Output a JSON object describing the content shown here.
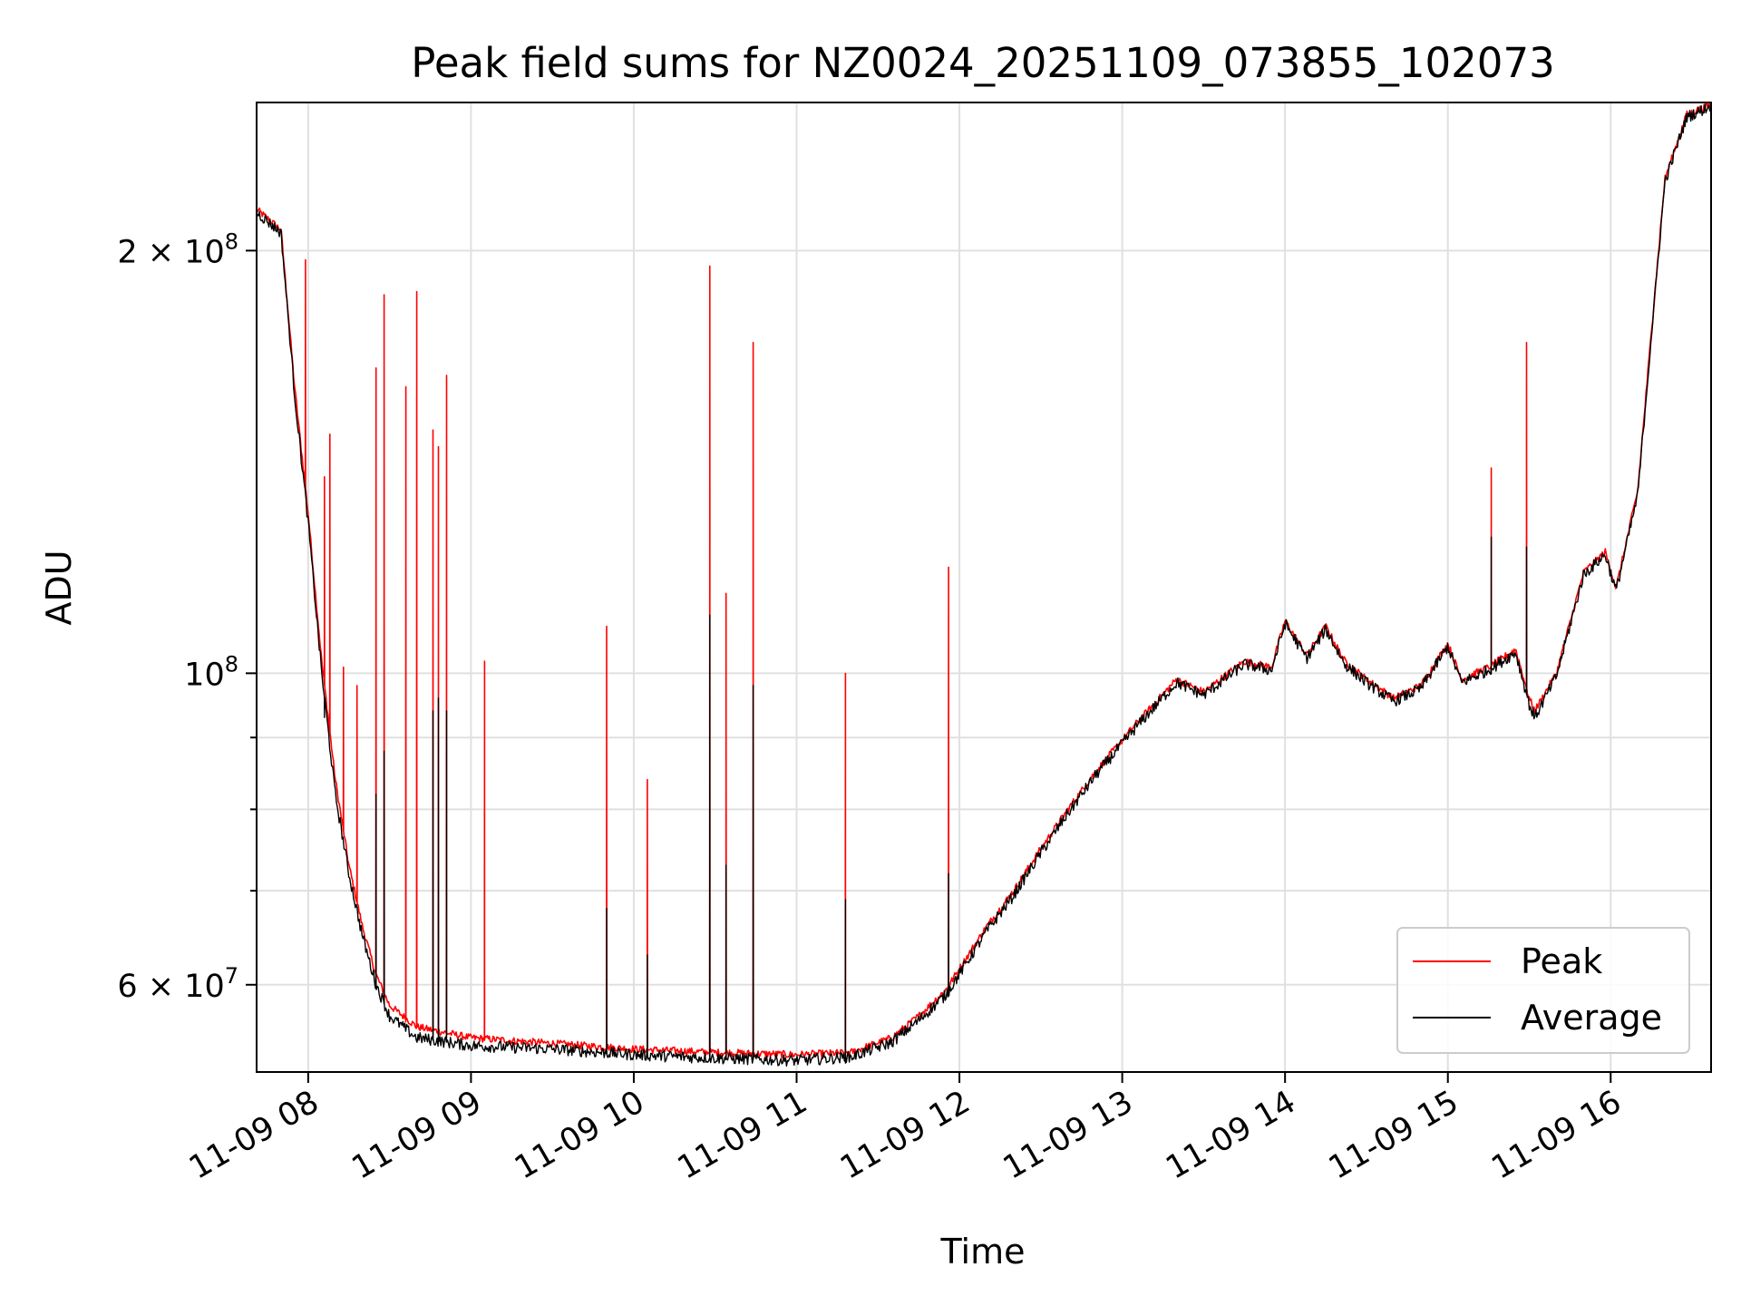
{
  "chart_data": {
    "type": "line",
    "title": "Peak field sums for NZ0024_20251109_073855_102073",
    "xlabel": "Time",
    "ylabel": "ADU",
    "yscale": "log",
    "xlim": [
      "2025-11-09 07:41",
      "2025-11-09 16:37"
    ],
    "ylim": [
      52000000,
      255000000
    ],
    "grid": true,
    "legend_position": "lower right",
    "x_ticks": [
      {
        "t": "2025-11-09 08:00",
        "label": "11-09 08"
      },
      {
        "t": "2025-11-09 09:00",
        "label": "11-09 09"
      },
      {
        "t": "2025-11-09 10:00",
        "label": "11-09 10"
      },
      {
        "t": "2025-11-09 11:00",
        "label": "11-09 11"
      },
      {
        "t": "2025-11-09 12:00",
        "label": "11-09 12"
      },
      {
        "t": "2025-11-09 13:00",
        "label": "11-09 13"
      },
      {
        "t": "2025-11-09 14:00",
        "label": "11-09 14"
      },
      {
        "t": "2025-11-09 15:00",
        "label": "11-09 15"
      },
      {
        "t": "2025-11-09 16:00",
        "label": "11-09 16"
      }
    ],
    "y_major_ticks": [
      {
        "v": 60000000,
        "base": "6 × 10",
        "exp": "7"
      },
      {
        "v": 100000000,
        "base": "10",
        "exp": "8"
      },
      {
        "v": 200000000,
        "base": "2 × 10",
        "exp": "8"
      }
    ],
    "y_minor_ticks": [
      70000000,
      80000000,
      90000000
    ],
    "series": [
      {
        "name": "Peak",
        "color": "#ff0000",
        "baseline": [
          [
            "2025-11-09 07:41",
            214000000
          ],
          [
            "2025-11-09 07:50",
            207000000
          ],
          [
            "2025-11-09 07:55",
            160000000
          ],
          [
            "2025-11-09 08:00",
            130000000
          ],
          [
            "2025-11-09 08:05",
            102000000
          ],
          [
            "2025-11-09 08:10",
            84000000
          ],
          [
            "2025-11-09 08:15",
            73000000
          ],
          [
            "2025-11-09 08:20",
            66000000
          ],
          [
            "2025-11-09 08:25",
            61000000
          ],
          [
            "2025-11-09 08:30",
            58000000
          ],
          [
            "2025-11-09 08:40",
            56000000
          ],
          [
            "2025-11-09 09:00",
            55000000
          ],
          [
            "2025-11-09 09:30",
            54500000
          ],
          [
            "2025-11-09 10:00",
            54000000
          ],
          [
            "2025-11-09 10:30",
            53700000
          ],
          [
            "2025-11-09 11:00",
            53500000
          ],
          [
            "2025-11-09 11:20",
            53700000
          ],
          [
            "2025-11-09 11:35",
            55000000
          ],
          [
            "2025-11-09 11:45",
            57000000
          ],
          [
            "2025-11-09 11:55",
            59500000
          ],
          [
            "2025-11-09 12:10",
            66000000
          ],
          [
            "2025-11-09 12:20",
            70000000
          ],
          [
            "2025-11-09 12:30",
            75000000
          ],
          [
            "2025-11-09 12:40",
            80000000
          ],
          [
            "2025-11-09 12:50",
            85000000
          ],
          [
            "2025-11-09 13:05",
            92000000
          ],
          [
            "2025-11-09 13:20",
            99000000
          ],
          [
            "2025-11-09 13:30",
            97000000
          ],
          [
            "2025-11-09 13:45",
            102000000
          ],
          [
            "2025-11-09 13:55",
            101000000
          ],
          [
            "2025-11-09 14:00",
            109000000
          ],
          [
            "2025-11-09 14:08",
            103000000
          ],
          [
            "2025-11-09 14:15",
            108000000
          ],
          [
            "2025-11-09 14:22",
            102000000
          ],
          [
            "2025-11-09 14:30",
            99000000
          ],
          [
            "2025-11-09 14:40",
            96000000
          ],
          [
            "2025-11-09 14:50",
            98000000
          ],
          [
            "2025-11-09 15:00",
            105000000
          ],
          [
            "2025-11-09 15:05",
            99000000
          ],
          [
            "2025-11-09 15:15",
            101000000
          ],
          [
            "2025-11-09 15:25",
            104000000
          ],
          [
            "2025-11-09 15:30",
            96000000
          ],
          [
            "2025-11-09 15:32",
            94000000
          ],
          [
            "2025-11-09 15:40",
            100000000
          ],
          [
            "2025-11-09 15:50",
            118000000
          ],
          [
            "2025-11-09 15:58",
            122000000
          ],
          [
            "2025-11-09 16:02",
            115000000
          ],
          [
            "2025-11-09 16:10",
            135000000
          ],
          [
            "2025-11-09 16:15",
            175000000
          ],
          [
            "2025-11-09 16:20",
            225000000
          ],
          [
            "2025-11-09 16:28",
            250000000
          ],
          [
            "2025-11-09 16:37",
            254000000
          ]
        ],
        "spikes": [
          [
            "2025-11-09 07:59",
            197000000
          ],
          [
            "2025-11-09 08:06",
            138000000
          ],
          [
            "2025-11-09 08:08",
            148000000
          ],
          [
            "2025-11-09 08:13",
            101000000
          ],
          [
            "2025-11-09 08:18",
            98000000
          ],
          [
            "2025-11-09 08:25",
            165000000
          ],
          [
            "2025-11-09 08:28",
            186000000
          ],
          [
            "2025-11-09 08:36",
            160000000
          ],
          [
            "2025-11-09 08:40",
            187000000
          ],
          [
            "2025-11-09 08:46",
            149000000
          ],
          [
            "2025-11-09 08:48",
            145000000
          ],
          [
            "2025-11-09 08:51",
            163000000
          ],
          [
            "2025-11-09 09:05",
            102000000
          ],
          [
            "2025-11-09 09:50",
            108000000
          ],
          [
            "2025-11-09 10:05",
            84000000
          ],
          [
            "2025-11-09 10:28",
            195000000
          ],
          [
            "2025-11-09 10:34",
            114000000
          ],
          [
            "2025-11-09 10:44",
            172000000
          ],
          [
            "2025-11-09 11:18",
            100000000
          ],
          [
            "2025-11-09 11:56",
            119000000
          ],
          [
            "2025-11-09 15:16",
            140000000
          ],
          [
            "2025-11-09 15:29",
            172000000
          ]
        ]
      },
      {
        "name": "Average",
        "color": "#000000",
        "baseline": [
          [
            "2025-11-09 07:41",
            213000000
          ],
          [
            "2025-11-09 07:50",
            206000000
          ],
          [
            "2025-11-09 07:55",
            158000000
          ],
          [
            "2025-11-09 08:00",
            128000000
          ],
          [
            "2025-11-09 08:05",
            100000000
          ],
          [
            "2025-11-09 08:10",
            82000000
          ],
          [
            "2025-11-09 08:15",
            72000000
          ],
          [
            "2025-11-09 08:20",
            65000000
          ],
          [
            "2025-11-09 08:25",
            60000000
          ],
          [
            "2025-11-09 08:30",
            57000000
          ],
          [
            "2025-11-09 08:40",
            55000000
          ],
          [
            "2025-11-09 09:00",
            54300000
          ],
          [
            "2025-11-09 09:30",
            54000000
          ],
          [
            "2025-11-09 10:00",
            53500000
          ],
          [
            "2025-11-09 10:30",
            53200000
          ],
          [
            "2025-11-09 11:00",
            53000000
          ],
          [
            "2025-11-09 11:20",
            53300000
          ],
          [
            "2025-11-09 11:35",
            54600000
          ],
          [
            "2025-11-09 11:45",
            56600000
          ],
          [
            "2025-11-09 11:55",
            59000000
          ],
          [
            "2025-11-09 12:10",
            65500000
          ],
          [
            "2025-11-09 12:20",
            69500000
          ],
          [
            "2025-11-09 12:30",
            74500000
          ],
          [
            "2025-11-09 12:40",
            79500000
          ],
          [
            "2025-11-09 12:50",
            84500000
          ],
          [
            "2025-11-09 13:05",
            91500000
          ],
          [
            "2025-11-09 13:20",
            98500000
          ],
          [
            "2025-11-09 13:30",
            96500000
          ],
          [
            "2025-11-09 13:45",
            101500000
          ],
          [
            "2025-11-09 13:55",
            100500000
          ],
          [
            "2025-11-09 14:00",
            108500000
          ],
          [
            "2025-11-09 14:08",
            102500000
          ],
          [
            "2025-11-09 14:15",
            107500000
          ],
          [
            "2025-11-09 14:22",
            101500000
          ],
          [
            "2025-11-09 14:30",
            98500000
          ],
          [
            "2025-11-09 14:40",
            95500000
          ],
          [
            "2025-11-09 14:50",
            97500000
          ],
          [
            "2025-11-09 15:00",
            104500000
          ],
          [
            "2025-11-09 15:05",
            98500000
          ],
          [
            "2025-11-09 15:15",
            100500000
          ],
          [
            "2025-11-09 15:25",
            103500000
          ],
          [
            "2025-11-09 15:30",
            95000000
          ],
          [
            "2025-11-09 15:32",
            93000000
          ],
          [
            "2025-11-09 15:40",
            99500000
          ],
          [
            "2025-11-09 15:50",
            117500000
          ],
          [
            "2025-11-09 15:58",
            121500000
          ],
          [
            "2025-11-09 16:02",
            114500000
          ],
          [
            "2025-11-09 16:10",
            134000000
          ],
          [
            "2025-11-09 16:15",
            174000000
          ],
          [
            "2025-11-09 16:20",
            224000000
          ],
          [
            "2025-11-09 16:28",
            249000000
          ],
          [
            "2025-11-09 16:37",
            253500000
          ]
        ],
        "spikes": [
          [
            "2025-11-09 08:06",
            93000000
          ],
          [
            "2025-11-09 08:25",
            82000000
          ],
          [
            "2025-11-09 08:28",
            88000000
          ],
          [
            "2025-11-09 08:46",
            94000000
          ],
          [
            "2025-11-09 08:48",
            96000000
          ],
          [
            "2025-11-09 08:51",
            94000000
          ],
          [
            "2025-11-09 09:50",
            68000000
          ],
          [
            "2025-11-09 10:05",
            63000000
          ],
          [
            "2025-11-09 10:28",
            110000000
          ],
          [
            "2025-11-09 10:34",
            73000000
          ],
          [
            "2025-11-09 10:44",
            98000000
          ],
          [
            "2025-11-09 11:18",
            69000000
          ],
          [
            "2025-11-09 11:56",
            72000000
          ],
          [
            "2025-11-09 15:16",
            125000000
          ],
          [
            "2025-11-09 15:29",
            123000000
          ]
        ]
      }
    ]
  }
}
